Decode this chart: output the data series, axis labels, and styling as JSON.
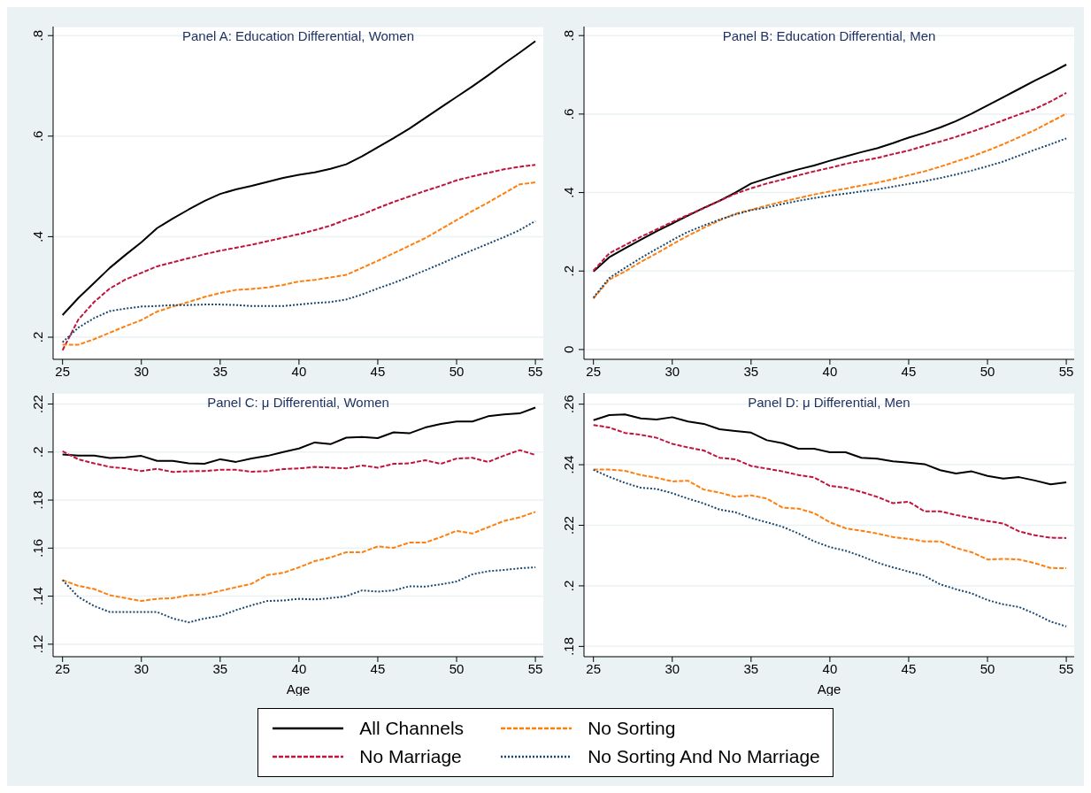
{
  "chart_data": [
    {
      "type": "line",
      "title": "Panel A: Education Differential, Women",
      "x": [
        25,
        26,
        27,
        28,
        29,
        30,
        31,
        32,
        33,
        34,
        35,
        36,
        37,
        38,
        39,
        40,
        41,
        42,
        43,
        44,
        45,
        46,
        47,
        48,
        49,
        50,
        51,
        52,
        53,
        54,
        55
      ],
      "xlim": [
        24.4,
        55.5
      ],
      "xticks": [
        25,
        30,
        35,
        40,
        45,
        50,
        55
      ],
      "ylim": [
        0.156,
        0.818
      ],
      "yticks": [
        {
          "value": 0.2,
          "label": ".2"
        },
        {
          "value": 0.4,
          "label": ".4"
        },
        {
          "value": 0.6,
          "label": ".6"
        },
        {
          "value": 0.8,
          "label": ".8"
        }
      ],
      "grid": "y",
      "legend": false,
      "series": [
        {
          "color": "#000000",
          "line_style": "solid",
          "values": [
            0.244,
            0.278,
            0.308,
            0.338,
            0.364,
            0.389,
            0.417,
            0.436,
            0.454,
            0.471,
            0.485,
            0.494,
            0.501,
            0.509,
            0.517,
            0.523,
            0.528,
            0.535,
            0.544,
            0.56,
            0.578,
            0.596,
            0.615,
            0.636,
            0.657,
            0.678,
            0.699,
            0.721,
            0.744,
            0.766,
            0.789
          ]
        },
        {
          "color": "#c0143c",
          "line_style": "dashed",
          "values": [
            0.174,
            0.235,
            0.27,
            0.297,
            0.315,
            0.328,
            0.341,
            0.349,
            0.357,
            0.365,
            0.372,
            0.378,
            0.384,
            0.391,
            0.398,
            0.405,
            0.413,
            0.422,
            0.434,
            0.444,
            0.457,
            0.469,
            0.48,
            0.491,
            0.501,
            0.512,
            0.52,
            0.527,
            0.534,
            0.539,
            0.543
          ]
        },
        {
          "color": "#ff7f0e",
          "line_style": "dashed",
          "values": [
            0.185,
            0.185,
            0.196,
            0.209,
            0.222,
            0.234,
            0.251,
            0.261,
            0.27,
            0.28,
            0.288,
            0.294,
            0.296,
            0.299,
            0.304,
            0.311,
            0.314,
            0.319,
            0.324,
            0.338,
            0.352,
            0.367,
            0.382,
            0.397,
            0.415,
            0.433,
            0.451,
            0.468,
            0.486,
            0.504,
            0.508
          ]
        },
        {
          "color": "#1a476f",
          "line_style": "dotted",
          "values": [
            0.19,
            0.219,
            0.238,
            0.252,
            0.257,
            0.261,
            0.262,
            0.264,
            0.264,
            0.265,
            0.265,
            0.264,
            0.262,
            0.262,
            0.262,
            0.265,
            0.268,
            0.27,
            0.275,
            0.285,
            0.297,
            0.308,
            0.32,
            0.333,
            0.346,
            0.36,
            0.373,
            0.386,
            0.399,
            0.413,
            0.431
          ]
        }
      ]
    },
    {
      "type": "line",
      "title": "Panel B: Education Differential, Men",
      "x": [
        25,
        26,
        27,
        28,
        29,
        30,
        31,
        32,
        33,
        34,
        35,
        36,
        37,
        38,
        39,
        40,
        41,
        42,
        43,
        44,
        45,
        46,
        47,
        48,
        49,
        50,
        51,
        52,
        53,
        54,
        55
      ],
      "xlim": [
        24.4,
        55.5
      ],
      "xticks": [
        25,
        30,
        35,
        40,
        45,
        50,
        55
      ],
      "ylim": [
        -0.025,
        0.823
      ],
      "yticks": [
        0,
        {
          "value": 0.2,
          "label": ".2"
        },
        {
          "value": 0.4,
          "label": ".4"
        },
        {
          "value": 0.6,
          "label": ".6"
        },
        {
          "value": 0.8,
          "label": ".8"
        }
      ],
      "grid": "y",
      "legend": false,
      "series": [
        {
          "color": "#000000",
          "line_style": "solid",
          "values": [
            0.199,
            0.235,
            0.258,
            0.28,
            0.301,
            0.321,
            0.341,
            0.361,
            0.379,
            0.4,
            0.423,
            0.436,
            0.448,
            0.459,
            0.469,
            0.481,
            0.492,
            0.503,
            0.513,
            0.526,
            0.54,
            0.552,
            0.566,
            0.582,
            0.601,
            0.622,
            0.643,
            0.664,
            0.685,
            0.705,
            0.726
          ]
        },
        {
          "color": "#c0143c",
          "line_style": "dashed",
          "values": [
            0.201,
            0.245,
            0.266,
            0.287,
            0.306,
            0.325,
            0.343,
            0.36,
            0.379,
            0.397,
            0.411,
            0.423,
            0.433,
            0.444,
            0.454,
            0.463,
            0.473,
            0.481,
            0.488,
            0.498,
            0.507,
            0.519,
            0.53,
            0.542,
            0.555,
            0.569,
            0.584,
            0.599,
            0.613,
            0.632,
            0.654
          ]
        },
        {
          "color": "#ff7f0e",
          "line_style": "dashed",
          "values": [
            0.13,
            0.178,
            0.199,
            0.223,
            0.245,
            0.268,
            0.29,
            0.31,
            0.329,
            0.346,
            0.356,
            0.367,
            0.377,
            0.386,
            0.395,
            0.403,
            0.41,
            0.418,
            0.425,
            0.434,
            0.444,
            0.454,
            0.466,
            0.479,
            0.492,
            0.507,
            0.523,
            0.541,
            0.559,
            0.58,
            0.601
          ]
        },
        {
          "color": "#1a476f",
          "line_style": "dotted",
          "values": [
            0.132,
            0.182,
            0.208,
            0.233,
            0.256,
            0.279,
            0.3,
            0.316,
            0.331,
            0.344,
            0.355,
            0.362,
            0.371,
            0.379,
            0.386,
            0.392,
            0.397,
            0.403,
            0.408,
            0.415,
            0.422,
            0.429,
            0.437,
            0.446,
            0.456,
            0.467,
            0.479,
            0.494,
            0.509,
            0.523,
            0.538
          ]
        }
      ]
    },
    {
      "type": "line",
      "title": "Panel C: μ Differential, Women",
      "xlabel": "Age",
      "x": [
        25,
        26,
        27,
        28,
        29,
        30,
        31,
        32,
        33,
        34,
        35,
        36,
        37,
        38,
        39,
        40,
        41,
        42,
        43,
        44,
        45,
        46,
        47,
        48,
        49,
        50,
        51,
        52,
        53,
        54,
        55
      ],
      "xlim": [
        24.4,
        55.5
      ],
      "xticks": [
        25,
        30,
        35,
        40,
        45,
        50,
        55
      ],
      "ylim": [
        0.1148,
        0.2246
      ],
      "yticks": [
        {
          "value": 0.12,
          "label": ".12"
        },
        {
          "value": 0.14,
          "label": ".14"
        },
        {
          "value": 0.16,
          "label": ".16"
        },
        {
          "value": 0.18,
          "label": ".18"
        },
        {
          "value": 0.2,
          "label": ".2"
        },
        {
          "value": 0.22,
          "label": ".22"
        }
      ],
      "grid": "y",
      "legend": false,
      "series": [
        {
          "color": "#000000",
          "line_style": "solid",
          "values": [
            0.199,
            0.1985,
            0.1985,
            0.1975,
            0.1978,
            0.1984,
            0.1963,
            0.1963,
            0.1953,
            0.1951,
            0.197,
            0.1959,
            0.1973,
            0.1984,
            0.2,
            0.2015,
            0.204,
            0.2033,
            0.206,
            0.2063,
            0.2058,
            0.2082,
            0.2078,
            0.2102,
            0.2117,
            0.2127,
            0.2127,
            0.2149,
            0.2157,
            0.2161,
            0.2185
          ]
        },
        {
          "color": "#c0143c",
          "line_style": "dashed",
          "values": [
            0.2003,
            0.197,
            0.1953,
            0.1938,
            0.1932,
            0.1921,
            0.193,
            0.1917,
            0.192,
            0.1921,
            0.1926,
            0.1926,
            0.1918,
            0.1921,
            0.1929,
            0.1932,
            0.1938,
            0.1935,
            0.1932,
            0.1944,
            0.1935,
            0.1951,
            0.1953,
            0.1966,
            0.1951,
            0.1973,
            0.1976,
            0.1959,
            0.1985,
            0.2008,
            0.1988
          ]
        },
        {
          "color": "#ff7f0e",
          "line_style": "dashed",
          "values": [
            0.1467,
            0.1443,
            0.143,
            0.1404,
            0.1392,
            0.138,
            0.1389,
            0.1392,
            0.1404,
            0.1407,
            0.1422,
            0.1437,
            0.1452,
            0.1488,
            0.1497,
            0.152,
            0.1546,
            0.1561,
            0.1583,
            0.1583,
            0.1607,
            0.1601,
            0.1623,
            0.1623,
            0.1646,
            0.1672,
            0.1661,
            0.1687,
            0.1713,
            0.1728,
            0.1751
          ]
        },
        {
          "color": "#1a476f",
          "line_style": "dotted",
          "values": [
            0.1467,
            0.1397,
            0.1359,
            0.1334,
            0.1334,
            0.1334,
            0.1334,
            0.1307,
            0.1291,
            0.1307,
            0.1318,
            0.1342,
            0.1362,
            0.138,
            0.1382,
            0.1389,
            0.1386,
            0.1392,
            0.14,
            0.1424,
            0.1419,
            0.1424,
            0.1441,
            0.144,
            0.1449,
            0.1461,
            0.1491,
            0.1504,
            0.1509,
            0.1516,
            0.152
          ]
        }
      ]
    },
    {
      "type": "line",
      "title": "Panel D: μ Differential, Men",
      "xlabel": "Age",
      "x": [
        25,
        26,
        27,
        28,
        29,
        30,
        31,
        32,
        33,
        34,
        35,
        36,
        37,
        38,
        39,
        40,
        41,
        42,
        43,
        44,
        45,
        46,
        47,
        48,
        49,
        50,
        51,
        52,
        53,
        54,
        55
      ],
      "xlim": [
        24.4,
        55.5
      ],
      "xticks": [
        25,
        30,
        35,
        40,
        45,
        50,
        55
      ],
      "ylim": [
        0.1766,
        0.2637
      ],
      "yticks": [
        {
          "value": 0.18,
          "label": ".18"
        },
        {
          "value": 0.2,
          "label": ".2"
        },
        {
          "value": 0.22,
          "label": ".22"
        },
        {
          "value": 0.24,
          "label": ".24"
        },
        {
          "value": 0.26,
          "label": ".26"
        }
      ],
      "grid": "y",
      "legend": "bottom",
      "series": [
        {
          "name": "All Channels",
          "color": "#000000",
          "line_style": "solid",
          "values": [
            0.2547,
            0.2564,
            0.2566,
            0.2553,
            0.2549,
            0.2557,
            0.2543,
            0.2535,
            0.2517,
            0.2511,
            0.2506,
            0.2481,
            0.2471,
            0.2453,
            0.2453,
            0.2441,
            0.2441,
            0.2423,
            0.242,
            0.2411,
            0.2407,
            0.2402,
            0.2382,
            0.2371,
            0.2378,
            0.2363,
            0.2354,
            0.2359,
            0.2348,
            0.2335,
            0.2342
          ]
        },
        {
          "name": "No Marriage",
          "color": "#c0143c",
          "line_style": "dashed",
          "values": [
            0.2531,
            0.2523,
            0.2505,
            0.2499,
            0.2489,
            0.2469,
            0.2457,
            0.2447,
            0.2423,
            0.2418,
            0.2396,
            0.2387,
            0.2378,
            0.2366,
            0.2358,
            0.233,
            0.2324,
            0.231,
            0.2294,
            0.2273,
            0.2278,
            0.2246,
            0.2246,
            0.2234,
            0.2224,
            0.2214,
            0.2206,
            0.218,
            0.2167,
            0.2159,
            0.2158
          ]
        },
        {
          "name": "No Sorting",
          "color": "#ff7f0e",
          "line_style": "dashed",
          "values": [
            0.2384,
            0.2384,
            0.238,
            0.2366,
            0.2357,
            0.2345,
            0.2347,
            0.2318,
            0.2308,
            0.2294,
            0.2299,
            0.2288,
            0.2258,
            0.2255,
            0.224,
            0.221,
            0.219,
            0.2182,
            0.2173,
            0.2161,
            0.2155,
            0.2147,
            0.2147,
            0.2125,
            0.2111,
            0.2087,
            0.2089,
            0.2087,
            0.2075,
            0.2059,
            0.2058
          ]
        },
        {
          "name": "No Sorting And No Marriage",
          "color": "#1a476f",
          "line_style": "dotted",
          "values": [
            0.2383,
            0.236,
            0.234,
            0.2324,
            0.232,
            0.2306,
            0.2288,
            0.2272,
            0.2252,
            0.2243,
            0.2224,
            0.221,
            0.2195,
            0.2173,
            0.2147,
            0.2128,
            0.2116,
            0.2098,
            0.2077,
            0.2061,
            0.2047,
            0.2033,
            0.2005,
            0.1989,
            0.1975,
            0.1953,
            0.1939,
            0.193,
            0.1908,
            0.1882,
            0.1866
          ]
        }
      ]
    }
  ]
}
